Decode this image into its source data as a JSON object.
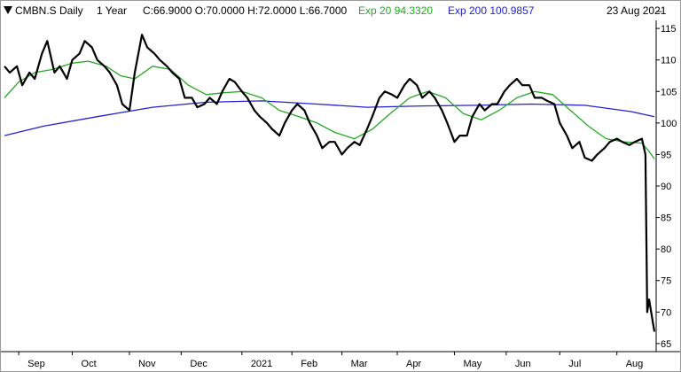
{
  "header": {
    "symbol": "CMBN.S Daily",
    "period": "1 Year",
    "ohlc": "C:66.9000 O:70.0000 H:72.0000 L:66.7000",
    "ema20_label": "Exp 20 94.3320",
    "ema200_label": "Exp 200 100.9857",
    "dash": "–",
    "date": "23 Aug 2021"
  },
  "colors": {
    "price": "#000000",
    "ema20": "#22aa22",
    "ema200": "#2222cc",
    "grid": "#cccccc",
    "axis": "#000000"
  },
  "chart_data": {
    "type": "line",
    "title": "",
    "xlabel": "",
    "ylabel": "",
    "ylim": [
      64,
      116
    ],
    "y_ticks": [
      65,
      70,
      75,
      80,
      85,
      90,
      95,
      100,
      105,
      110,
      115
    ],
    "x_range": [
      "2020-08-24",
      "2021-08-23"
    ],
    "x_ticks": [
      {
        "label": "Sep",
        "date": "2020-09-01"
      },
      {
        "label": "Oct",
        "date": "2020-10-01"
      },
      {
        "label": "Nov",
        "date": "2020-11-02"
      },
      {
        "label": "Dec",
        "date": "2020-12-01"
      },
      {
        "label": "2021",
        "date": "2021-01-04"
      },
      {
        "label": "Feb",
        "date": "2021-02-01"
      },
      {
        "label": "Mar",
        "date": "2021-03-01"
      },
      {
        "label": "Apr",
        "date": "2021-04-01"
      },
      {
        "label": "May",
        "date": "2021-05-03"
      },
      {
        "label": "Jun",
        "date": "2021-06-01"
      },
      {
        "label": "Jul",
        "date": "2021-07-01"
      },
      {
        "label": "Aug",
        "date": "2021-08-02"
      }
    ],
    "series": [
      {
        "name": "CMBN.S",
        "points": [
          [
            "2020-08-24",
            109
          ],
          [
            "2020-08-27",
            108
          ],
          [
            "2020-08-31",
            109
          ],
          [
            "2020-09-03",
            106
          ],
          [
            "2020-09-07",
            108
          ],
          [
            "2020-09-10",
            107
          ],
          [
            "2020-09-14",
            111
          ],
          [
            "2020-09-17",
            113
          ],
          [
            "2020-09-21",
            108
          ],
          [
            "2020-09-24",
            109
          ],
          [
            "2020-09-28",
            107
          ],
          [
            "2020-10-01",
            110
          ],
          [
            "2020-10-05",
            111
          ],
          [
            "2020-10-08",
            113
          ],
          [
            "2020-10-12",
            112
          ],
          [
            "2020-10-15",
            110
          ],
          [
            "2020-10-19",
            109
          ],
          [
            "2020-10-22",
            108
          ],
          [
            "2020-10-26",
            106
          ],
          [
            "2020-10-29",
            103
          ],
          [
            "2020-11-02",
            102
          ],
          [
            "2020-11-05",
            108
          ],
          [
            "2020-11-09",
            114
          ],
          [
            "2020-11-12",
            112
          ],
          [
            "2020-11-16",
            111
          ],
          [
            "2020-11-19",
            110
          ],
          [
            "2020-11-23",
            109
          ],
          [
            "2020-11-26",
            108
          ],
          [
            "2020-11-30",
            107
          ],
          [
            "2020-12-03",
            104
          ],
          [
            "2020-12-07",
            104
          ],
          [
            "2020-12-10",
            102.5
          ],
          [
            "2020-12-14",
            103
          ],
          [
            "2020-12-17",
            104
          ],
          [
            "2020-12-21",
            103
          ],
          [
            "2020-12-24",
            105
          ],
          [
            "2020-12-28",
            107
          ],
          [
            "2020-12-31",
            106.5
          ],
          [
            "2021-01-04",
            105
          ],
          [
            "2021-01-07",
            104
          ],
          [
            "2021-01-11",
            102
          ],
          [
            "2021-01-14",
            101
          ],
          [
            "2021-01-18",
            100
          ],
          [
            "2021-01-21",
            99
          ],
          [
            "2021-01-25",
            98
          ],
          [
            "2021-01-28",
            100
          ],
          [
            "2021-02-01",
            102
          ],
          [
            "2021-02-04",
            103
          ],
          [
            "2021-02-08",
            102
          ],
          [
            "2021-02-11",
            100
          ],
          [
            "2021-02-15",
            98
          ],
          [
            "2021-02-18",
            96
          ],
          [
            "2021-02-22",
            97
          ],
          [
            "2021-02-25",
            97
          ],
          [
            "2021-03-01",
            95
          ],
          [
            "2021-03-04",
            96
          ],
          [
            "2021-03-08",
            97
          ],
          [
            "2021-03-11",
            96.5
          ],
          [
            "2021-03-15",
            99
          ],
          [
            "2021-03-18",
            101
          ],
          [
            "2021-03-22",
            104
          ],
          [
            "2021-03-25",
            105
          ],
          [
            "2021-03-29",
            104.5
          ],
          [
            "2021-04-01",
            104
          ],
          [
            "2021-04-05",
            106
          ],
          [
            "2021-04-08",
            107
          ],
          [
            "2021-04-12",
            106
          ],
          [
            "2021-04-15",
            104
          ],
          [
            "2021-04-19",
            105
          ],
          [
            "2021-04-22",
            104
          ],
          [
            "2021-04-26",
            102
          ],
          [
            "2021-04-29",
            100
          ],
          [
            "2021-05-03",
            97
          ],
          [
            "2021-05-06",
            98
          ],
          [
            "2021-05-10",
            98
          ],
          [
            "2021-05-13",
            101
          ],
          [
            "2021-05-17",
            103
          ],
          [
            "2021-05-20",
            102
          ],
          [
            "2021-05-24",
            103
          ],
          [
            "2021-05-27",
            103
          ],
          [
            "2021-05-31",
            105
          ],
          [
            "2021-06-03",
            106
          ],
          [
            "2021-06-07",
            107
          ],
          [
            "2021-06-10",
            106
          ],
          [
            "2021-06-14",
            106
          ],
          [
            "2021-06-17",
            104
          ],
          [
            "2021-06-21",
            104
          ],
          [
            "2021-06-24",
            103.5
          ],
          [
            "2021-06-28",
            103
          ],
          [
            "2021-07-01",
            100
          ],
          [
            "2021-07-05",
            98
          ],
          [
            "2021-07-08",
            96
          ],
          [
            "2021-07-12",
            97
          ],
          [
            "2021-07-15",
            94.5
          ],
          [
            "2021-07-19",
            94
          ],
          [
            "2021-07-22",
            95
          ],
          [
            "2021-07-26",
            96
          ],
          [
            "2021-07-29",
            97
          ],
          [
            "2021-08-02",
            97.5
          ],
          [
            "2021-08-05",
            97
          ],
          [
            "2021-08-09",
            96.5
          ],
          [
            "2021-08-12",
            97
          ],
          [
            "2021-08-16",
            97.5
          ],
          [
            "2021-08-18",
            95
          ],
          [
            "2021-08-19",
            70
          ],
          [
            "2021-08-20",
            72
          ],
          [
            "2021-08-23",
            66.9
          ]
        ]
      },
      {
        "name": "Exp 20",
        "points": [
          [
            "2020-08-24",
            104
          ],
          [
            "2020-09-01",
            106.5
          ],
          [
            "2020-09-10",
            108
          ],
          [
            "2020-09-20",
            108.5
          ],
          [
            "2020-10-01",
            109.5
          ],
          [
            "2020-10-10",
            109.8
          ],
          [
            "2020-10-20",
            109
          ],
          [
            "2020-10-28",
            107.5
          ],
          [
            "2020-11-05",
            107
          ],
          [
            "2020-11-15",
            109
          ],
          [
            "2020-11-25",
            108.5
          ],
          [
            "2020-12-05",
            106
          ],
          [
            "2020-12-15",
            104.5
          ],
          [
            "2020-12-25",
            104.8
          ],
          [
            "2021-01-04",
            105
          ],
          [
            "2021-01-15",
            104
          ],
          [
            "2021-01-25",
            102
          ],
          [
            "2021-02-05",
            101
          ],
          [
            "2021-02-15",
            100
          ],
          [
            "2021-02-25",
            98.5
          ],
          [
            "2021-03-08",
            97.5
          ],
          [
            "2021-03-18",
            99
          ],
          [
            "2021-03-28",
            101.5
          ],
          [
            "2021-04-08",
            104
          ],
          [
            "2021-04-18",
            105
          ],
          [
            "2021-04-28",
            104
          ],
          [
            "2021-05-08",
            101.5
          ],
          [
            "2021-05-18",
            100.5
          ],
          [
            "2021-05-28",
            102
          ],
          [
            "2021-06-07",
            104
          ],
          [
            "2021-06-17",
            105
          ],
          [
            "2021-06-27",
            104.5
          ],
          [
            "2021-07-07",
            102
          ],
          [
            "2021-07-17",
            99.5
          ],
          [
            "2021-07-27",
            97.5
          ],
          [
            "2021-08-06",
            97
          ],
          [
            "2021-08-16",
            96.8
          ],
          [
            "2021-08-20",
            95.5
          ],
          [
            "2021-08-23",
            94.3
          ]
        ]
      },
      {
        "name": "Exp 200",
        "points": [
          [
            "2020-08-24",
            98
          ],
          [
            "2020-09-15",
            99.5
          ],
          [
            "2020-10-15",
            101
          ],
          [
            "2020-11-15",
            102.5
          ],
          [
            "2020-12-15",
            103.3
          ],
          [
            "2021-01-15",
            103.5
          ],
          [
            "2021-02-15",
            103
          ],
          [
            "2021-03-15",
            102.5
          ],
          [
            "2021-04-15",
            102.7
          ],
          [
            "2021-05-15",
            102.8
          ],
          [
            "2021-06-15",
            103
          ],
          [
            "2021-07-15",
            102.8
          ],
          [
            "2021-08-10",
            101.8
          ],
          [
            "2021-08-23",
            101
          ]
        ]
      }
    ]
  }
}
